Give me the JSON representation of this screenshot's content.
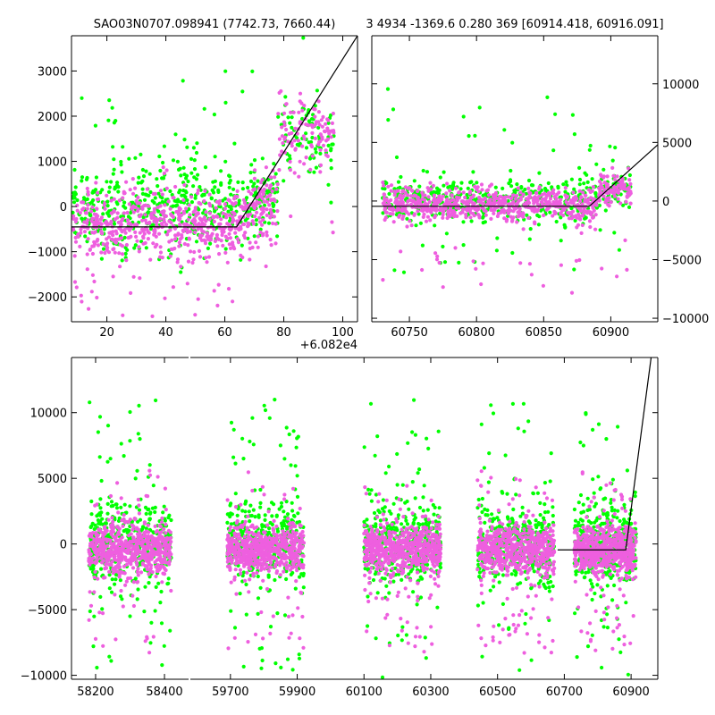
{
  "title_left": "SAO03N0707.098941 (7742.73, 7660.44)",
  "title_right": "3 4934 -1369.6 0.280 369 [60914.418, 60916.091]",
  "colors": {
    "green": "#00ff00",
    "magenta": "#ee5fdf",
    "line": "#000000"
  },
  "chart_data": [
    {
      "id": "zoom",
      "type": "scatter",
      "xlim": [
        8,
        105
      ],
      "ylim": [
        -2550,
        3780
      ],
      "xticks": [
        20,
        40,
        60,
        80,
        100
      ],
      "yticks": [
        -2000,
        -1000,
        0,
        1000,
        2000,
        3000
      ],
      "ytick_labels": [
        "−2000",
        "−1000",
        "0",
        "1000",
        "2000",
        "3000"
      ],
      "x_offset_label": "+6.082e4",
      "fit_line": {
        "x": [
          8,
          64,
          105
        ],
        "y": [
          -450,
          -450,
          3780
        ]
      },
      "series": [
        {
          "name": "green",
          "segments": [
            [
              8,
              20
            ],
            [
              20,
              32
            ],
            [
              32,
              44
            ],
            [
              44,
              54
            ],
            [
              54,
              66
            ],
            [
              66,
              78
            ],
            [
              78,
              97
            ]
          ],
          "y_center": [
            0,
            0,
            0,
            0,
            0,
            200,
            1500
          ],
          "spread": 450
        },
        {
          "name": "magenta",
          "segments": [
            [
              8,
              20
            ],
            [
              20,
              32
            ],
            [
              32,
              44
            ],
            [
              44,
              54
            ],
            [
              54,
              66
            ],
            [
              66,
              78
            ],
            [
              78,
              97
            ]
          ],
          "y_center": [
            -400,
            -400,
            -400,
            -400,
            -400,
            0,
            1600
          ],
          "spread": 400
        }
      ]
    },
    {
      "id": "recent",
      "type": "scatter",
      "xlim": [
        60722,
        60935
      ],
      "ylim": [
        -10300,
        14100
      ],
      "xticks": [
        60750,
        60800,
        60850,
        60900
      ],
      "yticks": [
        -10000,
        -5000,
        0,
        5000,
        10000
      ],
      "ytick_labels": [
        "−10000",
        "−5000",
        "0",
        "5000",
        "10000"
      ],
      "fit_line": {
        "x": [
          60722,
          60884,
          60935
        ],
        "y": [
          -450,
          -450,
          4800
        ]
      },
      "series": [
        {
          "name": "green",
          "x_range": [
            60730,
            60915
          ],
          "y_center": 0,
          "spread": 900
        },
        {
          "name": "magenta",
          "x_range": [
            60730,
            60915
          ],
          "y_center": -300,
          "spread": 700
        }
      ]
    },
    {
      "id": "full",
      "type": "scatter",
      "broken_axis": true,
      "ylim": [
        -10300,
        14200
      ],
      "yticks": [
        -10000,
        -5000,
        0,
        5000,
        10000
      ],
      "ytick_labels": [
        "−10000",
        "−5000",
        "0",
        "5000",
        "10000"
      ],
      "panels": [
        {
          "xlim": [
            58130,
            58470
          ],
          "xticks": [
            58200,
            58400
          ]
        },
        {
          "xlim": [
            59580,
            60980
          ],
          "xticks": [
            59700,
            59900,
            60100,
            60300,
            60500,
            60700,
            60900
          ]
        }
      ],
      "fit_line": {
        "x": [
          60680,
          60884,
          60960
        ],
        "y": [
          -450,
          -450,
          14200
        ]
      },
      "clusters": [
        {
          "panel": 0,
          "x_range": [
            58180,
            58420
          ]
        },
        {
          "panel": 1,
          "x_range": [
            59690,
            59920
          ]
        },
        {
          "panel": 1,
          "x_range": [
            60100,
            60330
          ]
        },
        {
          "panel": 1,
          "x_range": [
            60440,
            60670
          ]
        },
        {
          "panel": 1,
          "x_range": [
            60730,
            60915
          ]
        }
      ]
    }
  ]
}
